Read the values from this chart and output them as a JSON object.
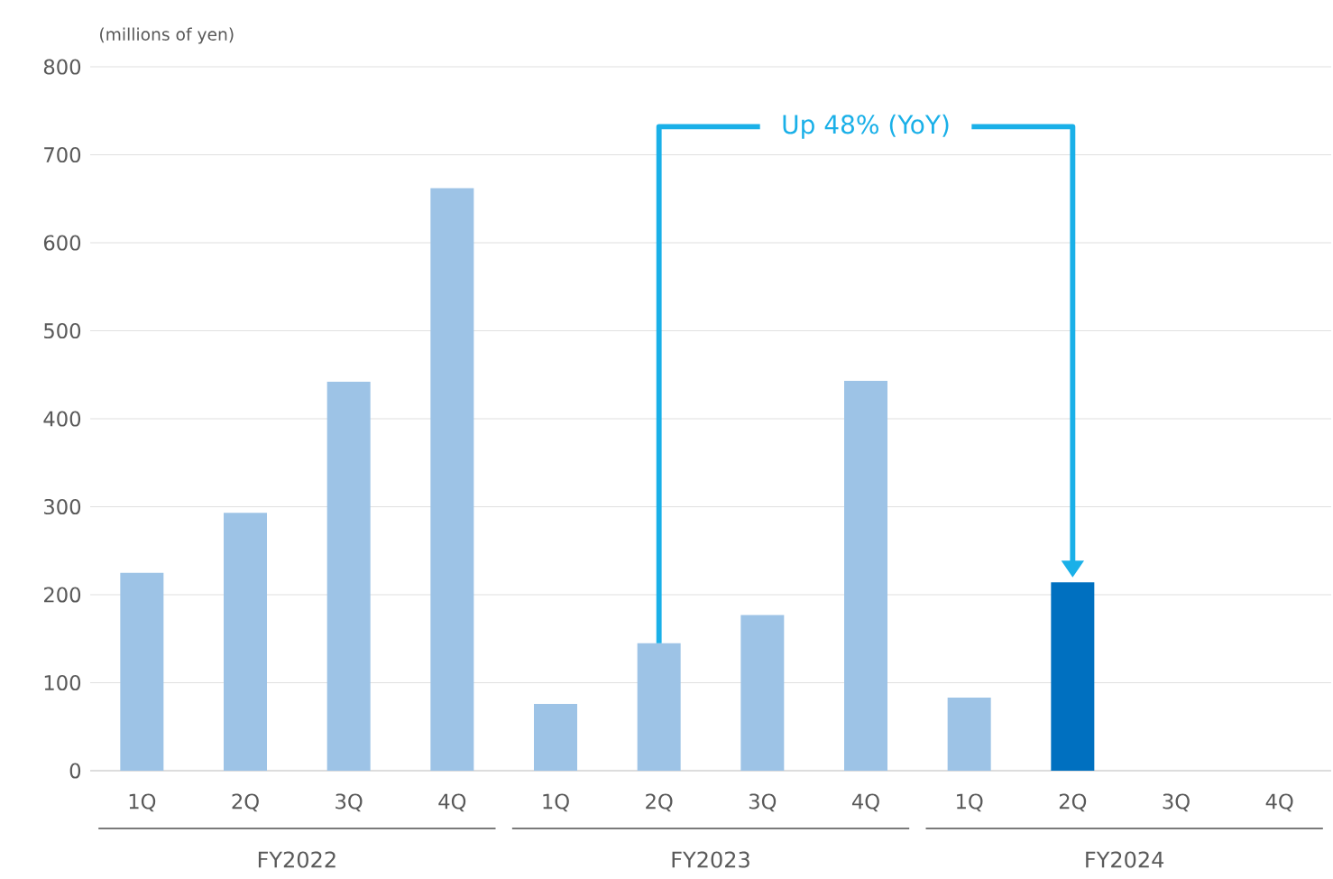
{
  "chart_data": {
    "type": "bar",
    "ylabel": "(millions of yen)",
    "categories": [
      "1Q",
      "2Q",
      "3Q",
      "4Q",
      "1Q",
      "2Q",
      "3Q",
      "4Q",
      "1Q",
      "2Q",
      "3Q",
      "4Q"
    ],
    "values": [
      225,
      293,
      442,
      662,
      76,
      145,
      177,
      443,
      83,
      214,
      null,
      null
    ],
    "colors": [
      "#9dc3e6",
      "#9dc3e6",
      "#9dc3e6",
      "#9dc3e6",
      "#9dc3e6",
      "#9dc3e6",
      "#9dc3e6",
      "#9dc3e6",
      "#9dc3e6",
      "#0070c0",
      "#9dc3e6",
      "#9dc3e6"
    ],
    "ylim": [
      0,
      800
    ],
    "yticks": [
      0,
      100,
      200,
      300,
      400,
      500,
      600,
      700,
      800
    ],
    "grid": "y",
    "annotations": [
      "FY2022",
      "FY2023",
      "FY2024",
      "Up 48% (YoY)"
    ]
  }
}
